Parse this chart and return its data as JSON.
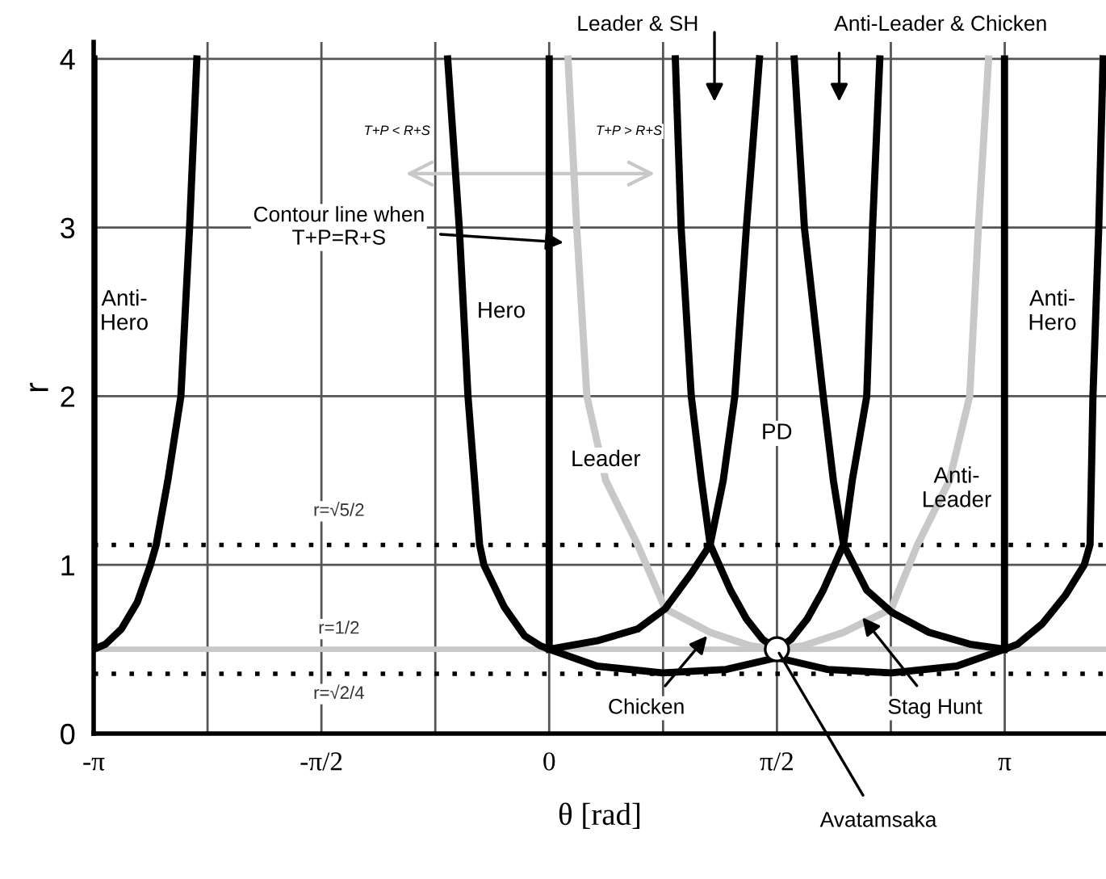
{
  "chart_data": {
    "type": "line",
    "xlabel": "θ [rad]",
    "ylabel": "r",
    "xlim": [
      -3.1416,
      3.84
    ],
    "ylim": [
      0,
      4.1
    ],
    "xticks": [
      {
        "value": -3.1416,
        "label": "-π"
      },
      {
        "value": -2.3562,
        "label": null
      },
      {
        "value": -1.5708,
        "label": "-π/2"
      },
      {
        "value": -0.7854,
        "label": null
      },
      0,
      {
        "value": 0.7854,
        "label": null
      },
      {
        "value": 1.5708,
        "label": "π/2"
      },
      {
        "value": 2.3562,
        "label": null
      },
      {
        "value": 3.1416,
        "label": "π"
      }
    ],
    "yticks": [
      0,
      1,
      2,
      3,
      4
    ],
    "grid": true,
    "legend": false,
    "line_style": "solid",
    "series": [
      {
        "color": "#000000",
        "x": [
          -3.14,
          -3.14,
          -3.06,
          -2.95,
          -2.84,
          -2.75,
          -2.71,
          -2.63,
          -2.54,
          -2.48,
          -2.43
        ],
        "values": [
          4,
          0.5,
          0.53,
          0.62,
          0.78,
          1.0,
          1.12,
          1.5,
          2,
          3,
          4
        ]
      },
      {
        "color": "#000000",
        "x": [
          -0.7,
          -0.62,
          -0.56,
          -0.48,
          -0.45,
          -0.31,
          -0.17,
          -0.06,
          0,
          0
        ],
        "values": [
          4,
          3,
          2,
          1.12,
          1.0,
          0.75,
          0.58,
          0.52,
          0.5,
          4
        ]
      },
      {
        "color": "#000000",
        "x": [
          0,
          0.33,
          0.61,
          0.8,
          0.98,
          1.11,
          1.2,
          1.28,
          1.36,
          1.45
        ],
        "values": [
          0.5,
          0.55,
          0.62,
          0.74,
          0.95,
          1.12,
          1.5,
          2,
          3,
          4
        ]
      },
      {
        "color": "#000000",
        "x": [
          0.87,
          0.91,
          0.98,
          1.05,
          1.11,
          1.25,
          1.36,
          1.47,
          1.57
        ],
        "values": [
          4,
          3,
          2,
          1.5,
          1.12,
          0.85,
          0.68,
          0.56,
          0.5
        ]
      },
      {
        "color": "#000000",
        "x": [
          1.57,
          1.67,
          1.78,
          1.89,
          2.03,
          2.09,
          2.19,
          2.23,
          2.28
        ],
        "values": [
          0.5,
          0.56,
          0.68,
          0.85,
          1.12,
          1.5,
          2,
          3,
          4
        ]
      },
      {
        "color": "#000000",
        "x": [
          1.69,
          1.76,
          1.89,
          1.96,
          2.03,
          2.19,
          2.36,
          2.62,
          2.9,
          3.14
        ],
        "values": [
          4,
          3,
          2,
          1.5,
          1.12,
          0.85,
          0.72,
          0.6,
          0.53,
          0.5
        ]
      },
      {
        "color": "#000000",
        "x": [
          0,
          0.33,
          0.78,
          1.22,
          1.57
        ],
        "values": [
          0.5,
          0.4,
          0.36,
          0.38,
          0.45
        ]
      },
      {
        "color": "#000000",
        "x": [
          1.57,
          1.92,
          2.36,
          2.81,
          3.14
        ],
        "values": [
          0.45,
          0.38,
          0.36,
          0.4,
          0.5
        ]
      },
      {
        "color": "#000000",
        "x": [
          3.14,
          3.14,
          3.23,
          3.4,
          3.56,
          3.69,
          3.73,
          3.75,
          3.79,
          3.82
        ],
        "values": [
          4,
          0.5,
          0.53,
          0.65,
          0.82,
          1.0,
          1.12,
          2,
          3,
          4
        ]
      },
      {
        "color": "#c8c8c8",
        "x": [
          0.13,
          0.19,
          0.26,
          0.39,
          0.61,
          0.8,
          1.11,
          1.39,
          1.57
        ],
        "values": [
          4,
          3,
          2,
          1.5,
          1.12,
          0.74,
          0.6,
          0.52,
          0.5
        ]
      },
      {
        "color": "#c8c8c8",
        "x": [
          1.57,
          1.75,
          2.03,
          2.36,
          2.54,
          2.76,
          2.9,
          2.96,
          3.03
        ],
        "values": [
          0.5,
          0.52,
          0.6,
          0.74,
          1.12,
          1.5,
          2,
          3,
          4
        ]
      },
      {
        "type": "scatter",
        "marker": "circle",
        "color": "#ffffff",
        "x": [
          1.5708
        ],
        "values": [
          0.5
        ]
      }
    ],
    "ref_lines": [
      {
        "axis": "y",
        "value": 1.118,
        "label": "r=√5/2",
        "line_style": "dotted",
        "color": "#000000"
      },
      {
        "axis": "y",
        "value": 0.5,
        "label": "r=1/2",
        "line_style": "solid",
        "color": "#c8c8c8"
      },
      {
        "axis": "y",
        "value": 0.354,
        "label": "r=√2/4",
        "line_style": "dotted",
        "color": "#000000"
      }
    ],
    "annotations": [
      "Anti-\nHero",
      "Hero",
      "Leader",
      "PD",
      "Anti-\nLeader",
      "Anti-\nHero",
      {
        "text": "Contour line when\nT+P=R+S",
        "x": 0.13,
        "y": 2.91
      },
      "Leader & SH",
      "Anti-Leader & Chicken",
      {
        "text": "Chicken",
        "x": 1.11,
        "y": 0.6
      },
      {
        "text": "Stag Hunt",
        "x": 2.14,
        "y": 0.71
      },
      {
        "text": "Avatamsaka",
        "x": 1.57,
        "y": 0.5
      },
      "T+P < R+S",
      "T+P > R+S"
    ]
  }
}
